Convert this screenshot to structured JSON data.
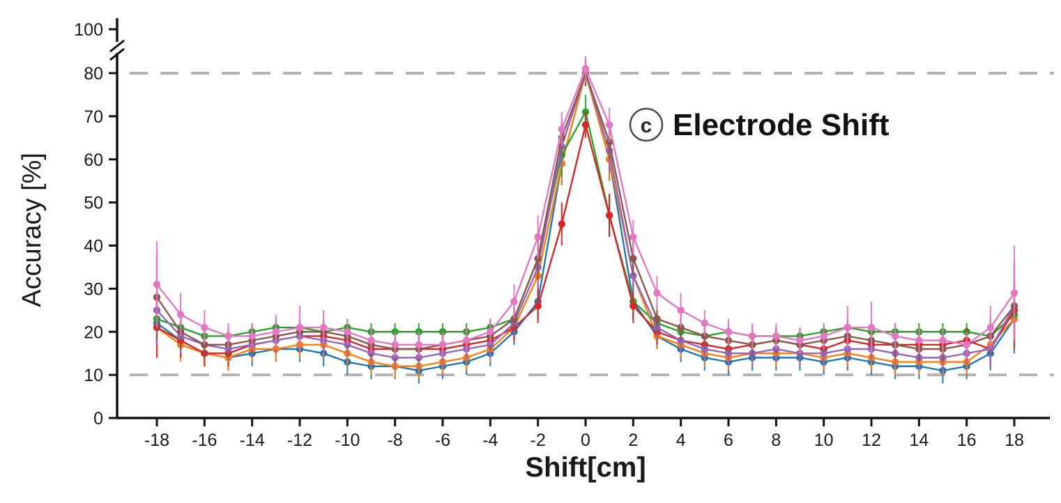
{
  "figure": {
    "annotation_letter": "c",
    "annotation_title": "Electrode Shift"
  },
  "chart_data": {
    "type": "line",
    "title": "(c) Electrode Shift",
    "xlabel": "Shift[cm]",
    "ylabel": "Accuracy [%]",
    "x": [
      -18,
      -17,
      -16,
      -15,
      -14,
      -13,
      -12,
      -11,
      -10,
      -9,
      -8,
      -7,
      -6,
      -5,
      -4,
      -3,
      -2,
      -1,
      0,
      1,
      2,
      3,
      4,
      5,
      6,
      7,
      8,
      9,
      10,
      11,
      12,
      13,
      14,
      15,
      16,
      17,
      18
    ],
    "x_ticks": [
      -18,
      -16,
      -14,
      -12,
      -10,
      -8,
      -6,
      -4,
      -2,
      0,
      2,
      4,
      6,
      8,
      10,
      12,
      14,
      16,
      18
    ],
    "y_axis": {
      "ticks": [
        0,
        10,
        20,
        30,
        40,
        50,
        60,
        70,
        80,
        100
      ],
      "break_between": [
        85,
        100
      ],
      "range_shown": [
        0,
        100
      ]
    },
    "grid": false,
    "legend": "none",
    "reference_lines": [
      {
        "y": 80,
        "style": "dashed",
        "color": "#b3b3b3"
      },
      {
        "y": 10,
        "style": "dashed",
        "color": "#b3b3b3"
      }
    ],
    "series": [
      {
        "name": "blue",
        "color": "#1f77b4",
        "values": [
          22,
          18,
          15,
          14,
          15,
          16,
          16,
          15,
          13,
          12,
          12,
          11,
          12,
          13,
          15,
          20,
          27,
          59,
          80,
          60,
          27,
          19,
          16,
          14,
          13,
          14,
          14,
          14,
          13,
          14,
          13,
          12,
          12,
          11,
          12,
          15,
          23
        ],
        "errors": [
          8,
          4,
          3,
          3,
          3,
          3,
          3,
          3,
          3,
          3,
          3,
          3,
          3,
          3,
          3,
          3,
          4,
          5,
          3,
          5,
          4,
          3,
          3,
          3,
          3,
          3,
          3,
          3,
          3,
          3,
          3,
          3,
          3,
          3,
          3,
          4,
          8
        ]
      },
      {
        "name": "orange",
        "color": "#ff7f0e",
        "values": [
          21,
          17,
          15,
          14,
          16,
          16,
          17,
          17,
          15,
          13,
          12,
          12,
          13,
          14,
          16,
          21,
          33,
          59,
          80,
          60,
          33,
          19,
          17,
          15,
          14,
          15,
          15,
          15,
          14,
          15,
          14,
          13,
          13,
          13,
          13,
          17,
          23
        ],
        "errors": [
          7,
          4,
          3,
          3,
          3,
          3,
          3,
          3,
          3,
          3,
          3,
          3,
          3,
          3,
          3,
          3,
          4,
          5,
          3,
          5,
          4,
          3,
          3,
          3,
          3,
          3,
          3,
          3,
          3,
          3,
          3,
          3,
          3,
          3,
          3,
          4,
          7
        ]
      },
      {
        "name": "green",
        "color": "#2ca02c",
        "values": [
          23,
          21,
          19,
          19,
          20,
          21,
          21,
          20,
          21,
          20,
          20,
          20,
          20,
          20,
          21,
          23,
          37,
          61,
          71,
          47,
          27,
          22,
          20,
          19,
          20,
          19,
          19,
          19,
          20,
          21,
          20,
          20,
          20,
          20,
          20,
          19,
          24
        ],
        "errors": [
          5,
          3,
          2,
          2,
          2,
          2,
          2,
          2,
          2,
          2,
          2,
          2,
          2,
          2,
          2,
          3,
          5,
          5,
          4,
          5,
          4,
          3,
          2,
          2,
          2,
          2,
          2,
          2,
          2,
          2,
          2,
          2,
          2,
          2,
          2,
          3,
          5
        ]
      },
      {
        "name": "red",
        "color": "#d62728",
        "values": [
          21,
          18,
          15,
          15,
          17,
          18,
          19,
          19,
          18,
          16,
          16,
          16,
          16,
          17,
          18,
          21,
          26,
          45,
          68,
          47,
          26,
          20,
          18,
          17,
          16,
          17,
          18,
          17,
          16,
          18,
          17,
          17,
          17,
          17,
          18,
          16,
          25
        ],
        "errors": [
          7,
          4,
          3,
          3,
          3,
          3,
          3,
          3,
          3,
          3,
          3,
          3,
          3,
          3,
          3,
          3,
          4,
          5,
          3,
          5,
          4,
          3,
          3,
          3,
          3,
          3,
          3,
          3,
          3,
          3,
          3,
          3,
          3,
          3,
          3,
          4,
          8
        ]
      },
      {
        "name": "purple",
        "color": "#9467bd",
        "values": [
          25,
          19,
          17,
          16,
          17,
          18,
          19,
          18,
          17,
          15,
          14,
          14,
          15,
          16,
          17,
          22,
          35,
          63,
          80,
          62,
          33,
          21,
          18,
          16,
          15,
          15,
          16,
          15,
          15,
          16,
          16,
          15,
          14,
          14,
          15,
          16,
          26
        ],
        "errors": [
          8,
          4,
          3,
          3,
          3,
          3,
          3,
          3,
          3,
          3,
          3,
          3,
          3,
          3,
          3,
          3,
          5,
          5,
          3,
          5,
          4,
          3,
          3,
          3,
          3,
          3,
          3,
          3,
          3,
          3,
          3,
          3,
          3,
          3,
          3,
          4,
          9
        ]
      },
      {
        "name": "brown",
        "color": "#8c564b",
        "values": [
          28,
          20,
          17,
          17,
          18,
          19,
          20,
          20,
          19,
          17,
          16,
          16,
          17,
          18,
          19,
          23,
          37,
          65,
          80,
          64,
          37,
          23,
          21,
          19,
          18,
          17,
          18,
          17,
          18,
          19,
          18,
          17,
          16,
          16,
          17,
          19,
          26
        ],
        "errors": [
          10,
          4,
          3,
          3,
          3,
          3,
          3,
          3,
          3,
          3,
          3,
          3,
          3,
          3,
          3,
          3,
          5,
          4,
          3,
          4,
          4,
          3,
          3,
          3,
          3,
          3,
          3,
          3,
          3,
          3,
          3,
          3,
          3,
          3,
          3,
          4,
          10
        ]
      },
      {
        "name": "pink",
        "color": "#e377c2",
        "values": [
          31,
          24,
          21,
          19,
          19,
          20,
          21,
          21,
          20,
          18,
          17,
          17,
          17,
          18,
          20,
          27,
          42,
          67,
          81,
          68,
          42,
          29,
          25,
          22,
          20,
          19,
          19,
          18,
          19,
          21,
          21,
          19,
          18,
          18,
          17,
          21,
          29
        ],
        "errors": [
          10,
          5,
          4,
          3,
          3,
          4,
          5,
          4,
          3,
          3,
          3,
          3,
          3,
          3,
          3,
          4,
          5,
          4,
          3,
          4,
          4,
          4,
          4,
          3,
          3,
          3,
          3,
          3,
          3,
          5,
          6,
          3,
          3,
          3,
          3,
          5,
          11
        ]
      }
    ]
  }
}
